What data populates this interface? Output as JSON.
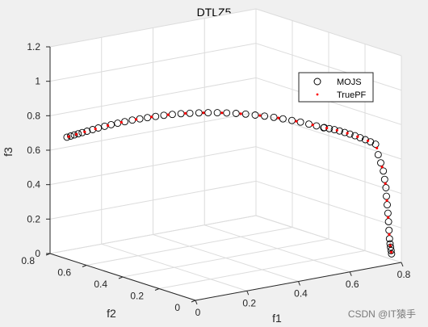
{
  "chart_data": {
    "type": "scatter",
    "title": "DTLZ5",
    "xlabel": "f1",
    "ylabel": "f2",
    "zlabel": "f3",
    "xlim": [
      0,
      0.8
    ],
    "ylim": [
      0,
      0.8
    ],
    "zlim": [
      0,
      1.2
    ],
    "x_ticks": [
      "0",
      "0.2",
      "0.4",
      "0.6",
      "0.8"
    ],
    "y_ticks": [
      "0",
      "0.2",
      "0.4",
      "0.6",
      "0.8"
    ],
    "z_ticks": [
      "0",
      "0.2",
      "0.4",
      "0.6",
      "0.8",
      "1",
      "1.2"
    ],
    "grid": true,
    "legend_position": "top-right",
    "series": [
      {
        "name": "MOJS",
        "marker": "open-circle",
        "color": "#000000",
        "points": [
          [
            0.0,
            0.707,
            0.707
          ],
          [
            0.01,
            0.701,
            0.713
          ],
          [
            0.02,
            0.695,
            0.719
          ],
          [
            0.03,
            0.688,
            0.725
          ],
          [
            0.04,
            0.68,
            0.732
          ],
          [
            0.052,
            0.67,
            0.74
          ],
          [
            0.065,
            0.658,
            0.75
          ],
          [
            0.078,
            0.645,
            0.76
          ],
          [
            0.092,
            0.63,
            0.771
          ],
          [
            0.106,
            0.614,
            0.782
          ],
          [
            0.12,
            0.598,
            0.792
          ],
          [
            0.135,
            0.58,
            0.803
          ],
          [
            0.15,
            0.56,
            0.815
          ],
          [
            0.165,
            0.54,
            0.825
          ],
          [
            0.18,
            0.519,
            0.835
          ],
          [
            0.196,
            0.497,
            0.845
          ],
          [
            0.212,
            0.474,
            0.855
          ],
          [
            0.228,
            0.45,
            0.864
          ],
          [
            0.244,
            0.425,
            0.872
          ],
          [
            0.26,
            0.399,
            0.879
          ],
          [
            0.276,
            0.372,
            0.886
          ],
          [
            0.292,
            0.344,
            0.892
          ],
          [
            0.308,
            0.316,
            0.897
          ],
          [
            0.324,
            0.287,
            0.901
          ],
          [
            0.34,
            0.258,
            0.904
          ],
          [
            0.356,
            0.228,
            0.906
          ],
          [
            0.372,
            0.198,
            0.906
          ],
          [
            0.387,
            0.168,
            0.906
          ],
          [
            0.402,
            0.138,
            0.905
          ],
          [
            0.417,
            0.109,
            0.902
          ],
          [
            0.432,
            0.081,
            0.898
          ],
          [
            0.447,
            0.055,
            0.893
          ],
          [
            0.462,
            0.03,
            0.886
          ],
          [
            0.476,
            0.008,
            0.879
          ],
          [
            0.49,
            -0.012,
            0.871
          ],
          [
            0.5,
            0.0,
            0.866
          ],
          [
            0.52,
            0.0,
            0.854
          ],
          [
            0.54,
            0.0,
            0.842
          ],
          [
            0.56,
            0.0,
            0.829
          ],
          [
            0.58,
            0.0,
            0.815
          ],
          [
            0.6,
            0.0,
            0.8
          ],
          [
            0.62,
            0.0,
            0.785
          ],
          [
            0.64,
            0.0,
            0.768
          ],
          [
            0.66,
            0.0,
            0.751
          ],
          [
            0.68,
            0.0,
            0.733
          ],
          [
            0.7,
            0.0,
            0.714
          ],
          [
            0.71,
            0.0,
            0.65
          ],
          [
            0.72,
            0.0,
            0.6
          ],
          [
            0.73,
            0.0,
            0.55
          ],
          [
            0.735,
            0.0,
            0.5
          ],
          [
            0.74,
            0.0,
            0.45
          ],
          [
            0.742,
            0.0,
            0.4
          ],
          [
            0.745,
            0.0,
            0.35
          ],
          [
            0.748,
            0.0,
            0.3
          ],
          [
            0.75,
            0.0,
            0.25
          ],
          [
            0.752,
            0.0,
            0.2
          ],
          [
            0.754,
            0.0,
            0.15
          ],
          [
            0.756,
            0.0,
            0.12
          ],
          [
            0.758,
            0.0,
            0.1
          ],
          [
            0.76,
            0.0,
            0.08
          ],
          [
            0.762,
            0.0,
            0.06
          ]
        ]
      },
      {
        "name": "TruePF",
        "marker": "point",
        "color": "#ff0000",
        "points": [
          [
            0.005,
            0.704,
            0.71
          ],
          [
            0.025,
            0.691,
            0.722
          ],
          [
            0.046,
            0.675,
            0.736
          ],
          [
            0.071,
            0.651,
            0.755
          ],
          [
            0.099,
            0.622,
            0.776
          ],
          [
            0.128,
            0.589,
            0.798
          ],
          [
            0.158,
            0.55,
            0.82
          ],
          [
            0.188,
            0.508,
            0.84
          ],
          [
            0.22,
            0.462,
            0.86
          ],
          [
            0.252,
            0.412,
            0.876
          ],
          [
            0.284,
            0.358,
            0.889
          ],
          [
            0.316,
            0.302,
            0.899
          ],
          [
            0.348,
            0.243,
            0.905
          ],
          [
            0.38,
            0.183,
            0.906
          ],
          [
            0.41,
            0.124,
            0.904
          ],
          [
            0.44,
            0.068,
            0.896
          ],
          [
            0.469,
            0.019,
            0.883
          ],
          [
            0.51,
            0.0,
            0.86
          ],
          [
            0.55,
            0.0,
            0.836
          ],
          [
            0.59,
            0.0,
            0.808
          ],
          [
            0.63,
            0.0,
            0.777
          ],
          [
            0.67,
            0.0,
            0.742
          ],
          [
            0.705,
            0.0,
            0.69
          ],
          [
            0.725,
            0.0,
            0.575
          ],
          [
            0.738,
            0.0,
            0.475
          ],
          [
            0.744,
            0.0,
            0.375
          ],
          [
            0.749,
            0.0,
            0.275
          ],
          [
            0.753,
            0.0,
            0.175
          ],
          [
            0.757,
            0.0,
            0.11
          ],
          [
            0.761,
            0.0,
            0.07
          ]
        ]
      }
    ]
  },
  "watermark": "CSDN @IT猿手"
}
